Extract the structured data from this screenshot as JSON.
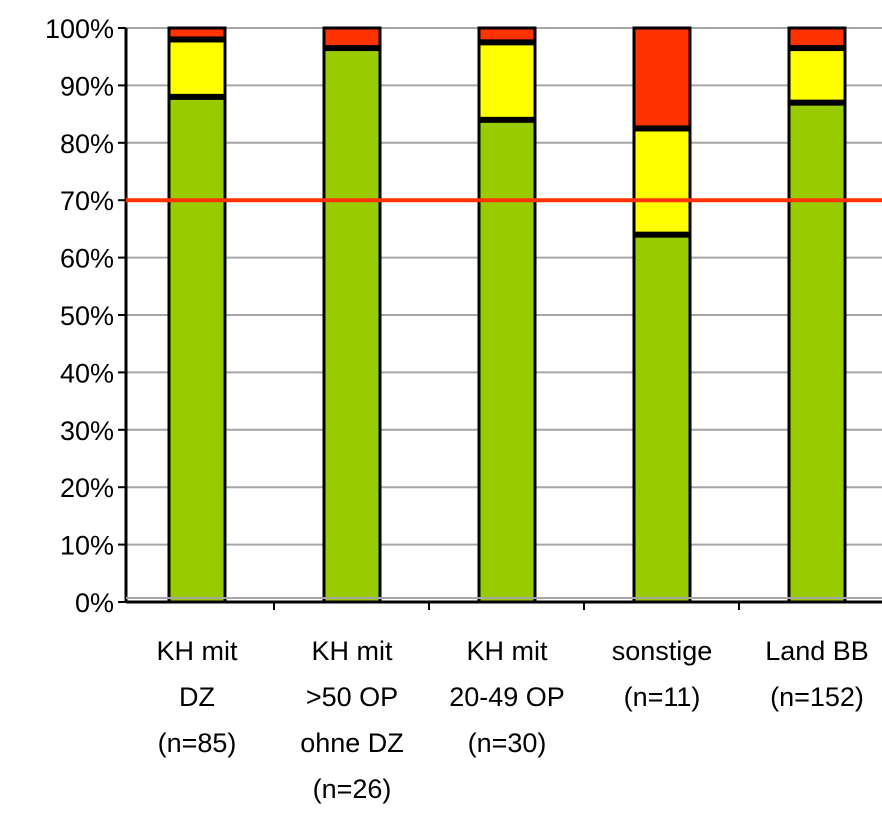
{
  "chart_data": {
    "type": "bar",
    "stacked": true,
    "grid": true,
    "ylim": [
      0,
      100
    ],
    "yticks": [
      "0%",
      "10%",
      "20%",
      "30%",
      "40%",
      "50%",
      "60%",
      "70%",
      "80%",
      "90%",
      "100%"
    ],
    "categories": [
      [
        "KH mit",
        "DZ",
        "(n=85)"
      ],
      [
        "KH mit",
        ">50 OP",
        "ohne DZ",
        "(n=26)"
      ],
      [
        "KH mit",
        "20-49 OP",
        "(n=30)"
      ],
      [
        "sonstige",
        "(n=11)"
      ],
      [
        "Land BB",
        "(n=152)"
      ]
    ],
    "series": [
      {
        "color": "#99cc00",
        "values": [
          88,
          96.5,
          84,
          64,
          87
        ]
      },
      {
        "color": "#ffff00",
        "values": [
          10,
          0,
          13.5,
          18.5,
          9.5
        ]
      },
      {
        "color": "#ff3300",
        "values": [
          2,
          3.5,
          2.5,
          17.5,
          3.5
        ]
      }
    ],
    "reference_line": {
      "value": 70,
      "color": "#ff3300"
    },
    "colors": {
      "grid": "#a6a6a6",
      "axis": "#000000"
    }
  }
}
